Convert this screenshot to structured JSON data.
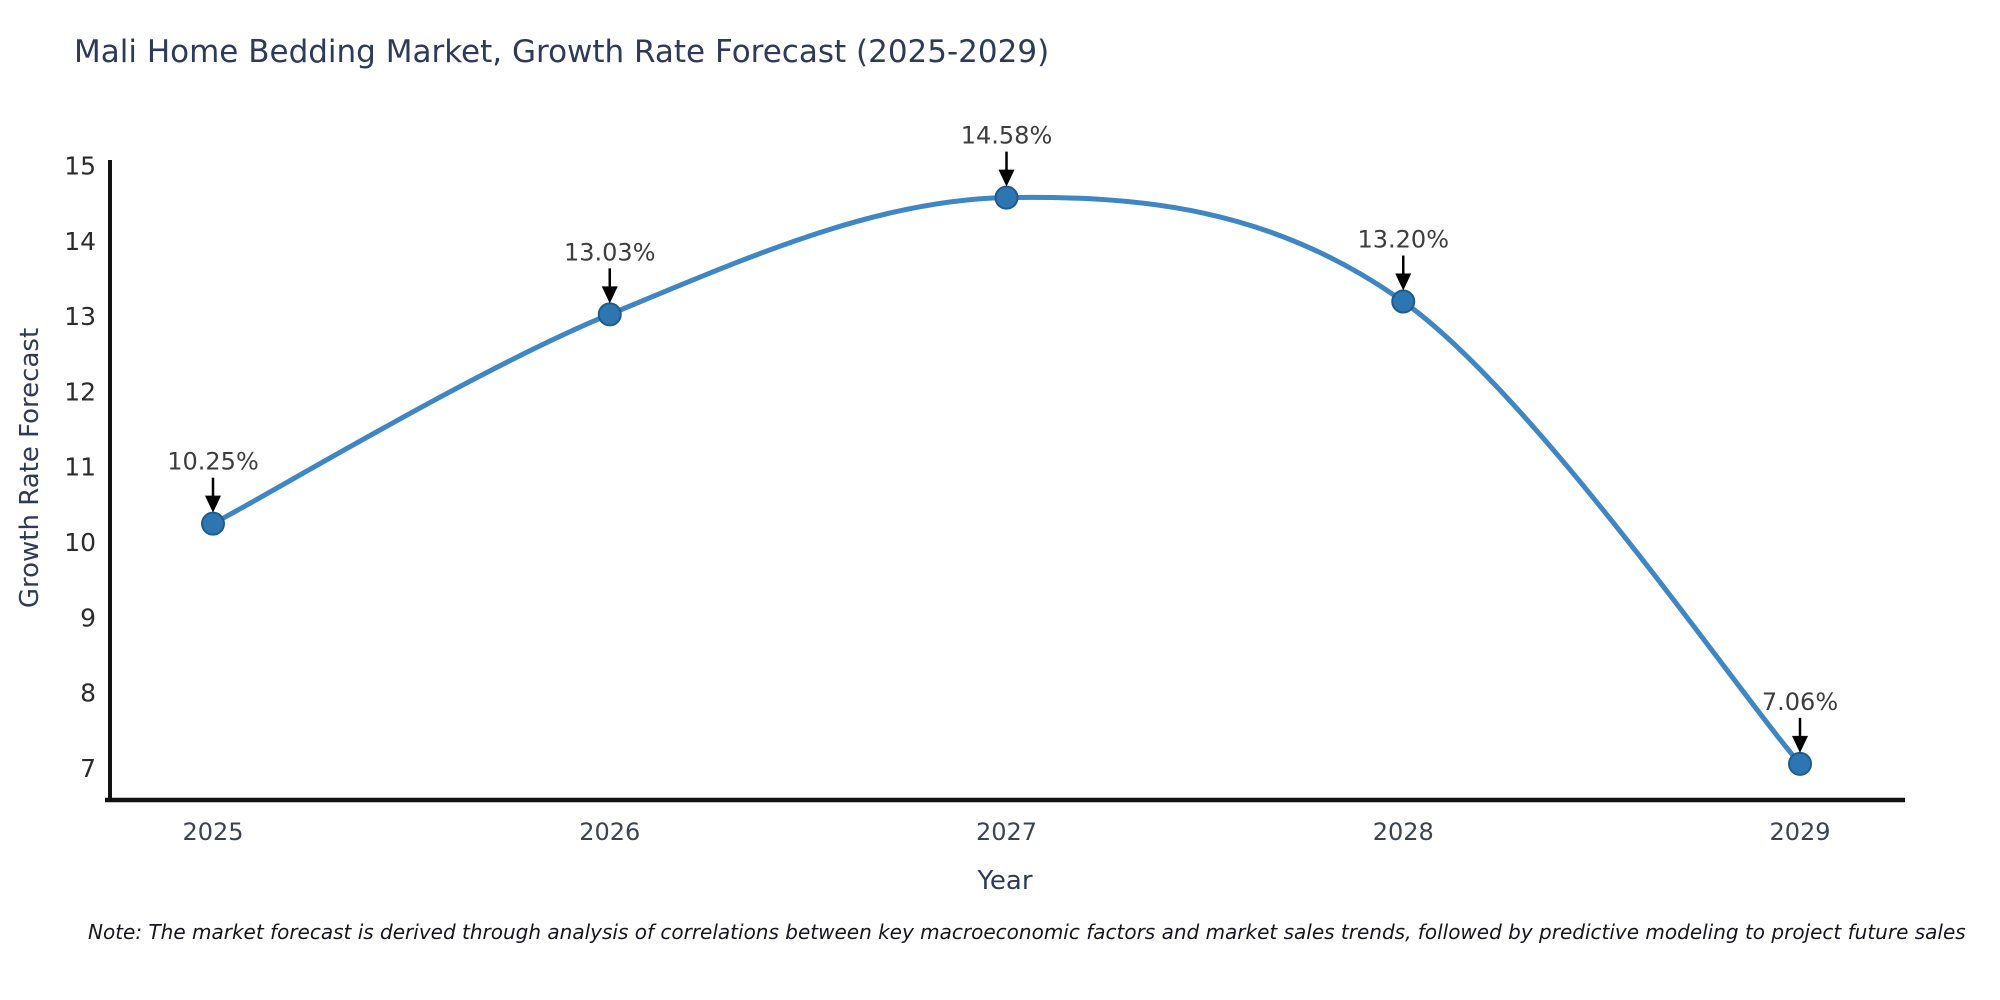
{
  "chart_data": {
    "type": "line",
    "title": "Mali Home Bedding Market, Growth Rate Forecast (2025-2029)",
    "xlabel": "Year",
    "ylabel": "Growth Rate Forecast",
    "note": "Note: The market forecast is derived through analysis of correlations between key macroeconomic factors and market sales trends, followed by predictive modeling to project future sales",
    "x": [
      2025,
      2026,
      2027,
      2028,
      2029
    ],
    "values": [
      10.25,
      13.03,
      14.58,
      13.2,
      7.06
    ],
    "point_labels": [
      "10.25%",
      "13.03%",
      "14.58%",
      "13.20%",
      "7.06%"
    ],
    "xticks": [
      "2025",
      "2026",
      "2027",
      "2028",
      "2029"
    ],
    "yticks": [
      7,
      8,
      9,
      10,
      11,
      12,
      13,
      14,
      15
    ],
    "ylim": [
      6.75,
      15.1
    ],
    "line_shape": "spline",
    "grid": false,
    "legend": "none",
    "colors": {
      "line": "#3e86c4",
      "marker_fill": "#2e76b2",
      "marker_edge": "#1e5c8e",
      "axis": "#111111",
      "y_tick_text": "#2b2b2b",
      "x_tick_text": "#3a4254",
      "title_text": "#2e3a59",
      "annotation_text": "#3d3d3d",
      "arrow": "#000000",
      "background": "#ffffff"
    }
  }
}
